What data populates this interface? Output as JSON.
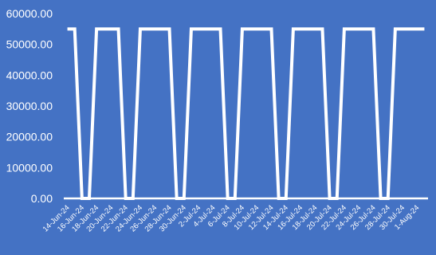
{
  "chart_data": {
    "type": "line",
    "title": "",
    "xlabel": "",
    "ylabel": "",
    "ylim": [
      0,
      60000
    ],
    "yticks": [
      "0.00",
      "10000.00",
      "20000.00",
      "30000.00",
      "40000.00",
      "50000.00",
      "60000.00"
    ],
    "grid": false,
    "legend": "none",
    "colors": {
      "background": "#4472C4",
      "line": "#ffffff",
      "text": "#ffffff"
    },
    "x_tick_labels": [
      "14-Jun-24",
      "16-Jun-24",
      "18-Jun-24",
      "20-Jun-24",
      "22-Jun-24",
      "24-Jun-24",
      "26-Jun-24",
      "28-Jun-24",
      "30-Jun-24",
      "2-Jul-24",
      "4-Jul-24",
      "6-Jul-24",
      "8-Jul-24",
      "10-Jul-24",
      "12-Jul-24",
      "14-Jul-24",
      "16-Jul-24",
      "18-Jul-24",
      "20-Jul-24",
      "22-Jul-24",
      "24-Jul-24",
      "26-Jul-24",
      "28-Jul-24",
      "30-Jul-24",
      "1-Aug-24"
    ],
    "series": [
      {
        "x": [
          "14-Jun-24",
          "15-Jun-24",
          "16-Jun-24",
          "17-Jun-24",
          "18-Jun-24",
          "19-Jun-24",
          "20-Jun-24",
          "21-Jun-24",
          "22-Jun-24",
          "23-Jun-24",
          "24-Jun-24",
          "25-Jun-24",
          "26-Jun-24",
          "27-Jun-24",
          "28-Jun-24",
          "29-Jun-24",
          "30-Jun-24",
          "1-Jul-24",
          "2-Jul-24",
          "3-Jul-24",
          "4-Jul-24",
          "5-Jul-24",
          "6-Jul-24",
          "7-Jul-24",
          "8-Jul-24",
          "9-Jul-24",
          "10-Jul-24",
          "11-Jul-24",
          "12-Jul-24",
          "13-Jul-24",
          "14-Jul-24",
          "15-Jul-24",
          "16-Jul-24",
          "17-Jul-24",
          "18-Jul-24",
          "19-Jul-24",
          "20-Jul-24",
          "21-Jul-24",
          "22-Jul-24",
          "23-Jul-24",
          "24-Jul-24",
          "25-Jul-24",
          "26-Jul-24",
          "27-Jul-24",
          "28-Jul-24",
          "29-Jul-24",
          "30-Jul-24",
          "31-Jul-24",
          "1-Aug-24",
          "2-Aug-24"
        ],
        "values": [
          55000,
          55000,
          0,
          0,
          55000,
          55000,
          55000,
          55000,
          0,
          0,
          55000,
          55000,
          55000,
          55000,
          55000,
          0,
          0,
          55000,
          55000,
          55000,
          55000,
          55000,
          0,
          0,
          55000,
          55000,
          55000,
          55000,
          55000,
          0,
          0,
          55000,
          55000,
          55000,
          55000,
          55000,
          0,
          0,
          55000,
          55000,
          55000,
          55000,
          55000,
          0,
          0,
          55000,
          55000,
          55000,
          55000,
          55000
        ]
      }
    ]
  }
}
